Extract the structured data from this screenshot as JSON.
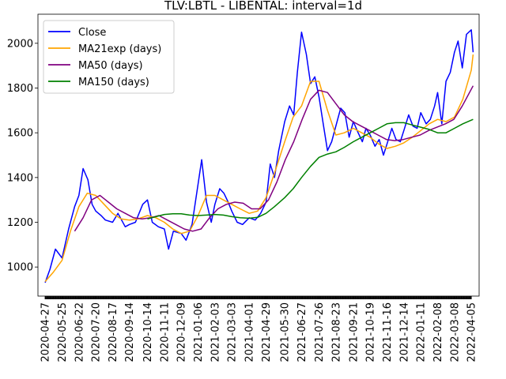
{
  "chart_data": {
    "type": "line",
    "title": "TLV:LBTL - LIBENTAL: interval=1d",
    "xlabel": "",
    "ylabel": "",
    "ylim": [
      870,
      2130
    ],
    "xlim": [
      "2020-04-15",
      "2022-04-18"
    ],
    "grid": false,
    "legend_position": "top-left",
    "yticks": [
      1000,
      1200,
      1400,
      1600,
      1800,
      2000
    ],
    "xticks": [
      "2020-04-27",
      "2020-05-25",
      "2020-06-22",
      "2020-07-20",
      "2020-08-17",
      "2020-09-14",
      "2020-10-14",
      "2020-11-11",
      "2020-12-09",
      "2021-01-06",
      "2021-02-03",
      "2021-03-03",
      "2021-04-01",
      "2021-04-29",
      "2021-05-30",
      "2021-06-27",
      "2021-07-26",
      "2021-08-23",
      "2021-09-21",
      "2021-10-19",
      "2021-11-16",
      "2021-12-14",
      "2022-01-11",
      "2022-02-08",
      "2022-03-08",
      "2022-04-05"
    ],
    "series": [
      {
        "name": "Close",
        "color": "#0000ff",
        "x": [
          "2020-04-27",
          "2020-05-05",
          "2020-05-14",
          "2020-05-25",
          "2020-06-05",
          "2020-06-15",
          "2020-06-22",
          "2020-06-29",
          "2020-07-07",
          "2020-07-14",
          "2020-07-20",
          "2020-07-29",
          "2020-08-05",
          "2020-08-17",
          "2020-08-26",
          "2020-09-07",
          "2020-09-14",
          "2020-09-24",
          "2020-10-06",
          "2020-10-14",
          "2020-10-22",
          "2020-11-01",
          "2020-11-11",
          "2020-11-18",
          "2020-11-26",
          "2020-12-09",
          "2020-12-17",
          "2020-12-27",
          "2021-01-06",
          "2021-01-12",
          "2021-01-20",
          "2021-01-28",
          "2021-02-03",
          "2021-02-11",
          "2021-02-18",
          "2021-02-25",
          "2021-03-03",
          "2021-03-12",
          "2021-03-21",
          "2021-04-01",
          "2021-04-11",
          "2021-04-20",
          "2021-04-29",
          "2021-05-06",
          "2021-05-13",
          "2021-05-20",
          "2021-05-30",
          "2021-06-07",
          "2021-06-14",
          "2021-06-20",
          "2021-06-27",
          "2021-07-05",
          "2021-07-12",
          "2021-07-19",
          "2021-07-26",
          "2021-08-02",
          "2021-08-09",
          "2021-08-16",
          "2021-08-23",
          "2021-08-31",
          "2021-09-07",
          "2021-09-14",
          "2021-09-21",
          "2021-09-29",
          "2021-10-06",
          "2021-10-12",
          "2021-10-19",
          "2021-10-27",
          "2021-11-03",
          "2021-11-10",
          "2021-11-16",
          "2021-11-24",
          "2021-12-01",
          "2021-12-08",
          "2021-12-14",
          "2021-12-22",
          "2021-12-29",
          "2022-01-05",
          "2022-01-11",
          "2022-01-20",
          "2022-01-27",
          "2022-02-03",
          "2022-02-08",
          "2022-02-15",
          "2022-02-22",
          "2022-03-01",
          "2022-03-08",
          "2022-03-14",
          "2022-03-21",
          "2022-03-28",
          "2022-04-05",
          "2022-04-08"
        ],
        "y": [
          930,
          990,
          1080,
          1040,
          1170,
          1270,
          1320,
          1440,
          1390,
          1280,
          1250,
          1230,
          1210,
          1200,
          1240,
          1180,
          1190,
          1200,
          1280,
          1300,
          1200,
          1180,
          1170,
          1080,
          1160,
          1150,
          1120,
          1190,
          1370,
          1480,
          1290,
          1200,
          1280,
          1350,
          1330,
          1290,
          1250,
          1200,
          1190,
          1220,
          1210,
          1240,
          1290,
          1460,
          1400,
          1520,
          1650,
          1720,
          1680,
          1870,
          2050,
          1950,
          1820,
          1850,
          1760,
          1640,
          1520,
          1560,
          1630,
          1710,
          1690,
          1580,
          1650,
          1600,
          1560,
          1620,
          1590,
          1540,
          1570,
          1500,
          1550,
          1620,
          1570,
          1560,
          1610,
          1680,
          1630,
          1620,
          1690,
          1640,
          1660,
          1720,
          1780,
          1640,
          1830,
          1870,
          1960,
          2010,
          1890,
          2040,
          2060,
          1960
        ]
      },
      {
        "name": "MA21exp (days)",
        "color": "#ffa500",
        "x": [
          "2020-04-27",
          "2020-05-10",
          "2020-05-25",
          "2020-06-08",
          "2020-06-22",
          "2020-07-06",
          "2020-07-20",
          "2020-08-03",
          "2020-08-17",
          "2020-08-31",
          "2020-09-14",
          "2020-09-28",
          "2020-10-14",
          "2020-10-28",
          "2020-11-11",
          "2020-11-25",
          "2020-12-09",
          "2020-12-23",
          "2021-01-06",
          "2021-01-20",
          "2021-02-03",
          "2021-02-17",
          "2021-03-03",
          "2021-03-17",
          "2021-04-01",
          "2021-04-15",
          "2021-04-29",
          "2021-05-13",
          "2021-05-30",
          "2021-06-13",
          "2021-06-27",
          "2021-07-12",
          "2021-07-26",
          "2021-08-09",
          "2021-08-23",
          "2021-09-06",
          "2021-09-21",
          "2021-10-05",
          "2021-10-19",
          "2021-11-02",
          "2021-11-16",
          "2021-11-30",
          "2021-12-14",
          "2021-12-28",
          "2022-01-11",
          "2022-01-25",
          "2022-02-08",
          "2022-02-22",
          "2022-03-08",
          "2022-03-22",
          "2022-04-05",
          "2022-04-08"
        ],
        "y": [
          935,
          975,
          1030,
          1160,
          1270,
          1330,
          1320,
          1280,
          1240,
          1215,
          1210,
          1215,
          1230,
          1220,
          1200,
          1170,
          1150,
          1160,
          1230,
          1320,
          1320,
          1300,
          1280,
          1260,
          1240,
          1250,
          1310,
          1420,
          1560,
          1670,
          1720,
          1830,
          1830,
          1700,
          1590,
          1600,
          1620,
          1600,
          1580,
          1550,
          1530,
          1540,
          1555,
          1580,
          1610,
          1640,
          1660,
          1650,
          1670,
          1750,
          1880,
          1950
        ]
      },
      {
        "name": "MA50 (days)",
        "color": "#800080",
        "x": [
          "2020-06-15",
          "2020-06-29",
          "2020-07-13",
          "2020-07-27",
          "2020-08-10",
          "2020-08-24",
          "2020-09-07",
          "2020-09-21",
          "2020-10-05",
          "2020-10-19",
          "2020-11-02",
          "2020-11-16",
          "2020-11-30",
          "2020-12-14",
          "2020-12-28",
          "2021-01-11",
          "2021-01-25",
          "2021-02-08",
          "2021-02-22",
          "2021-03-08",
          "2021-03-22",
          "2021-04-05",
          "2021-04-19",
          "2021-05-03",
          "2021-05-17",
          "2021-05-31",
          "2021-06-14",
          "2021-06-28",
          "2021-07-12",
          "2021-07-26",
          "2021-08-09",
          "2021-08-23",
          "2021-09-06",
          "2021-09-20",
          "2021-10-04",
          "2021-10-18",
          "2021-11-01",
          "2021-11-15",
          "2021-11-29",
          "2021-12-13",
          "2021-12-27",
          "2022-01-10",
          "2022-01-24",
          "2022-02-07",
          "2022-02-21",
          "2022-03-07",
          "2022-03-21",
          "2022-04-08"
        ],
        "y": [
          1160,
          1220,
          1300,
          1320,
          1290,
          1260,
          1240,
          1220,
          1215,
          1220,
          1230,
          1210,
          1190,
          1170,
          1160,
          1170,
          1220,
          1260,
          1280,
          1290,
          1285,
          1260,
          1260,
          1300,
          1380,
          1480,
          1560,
          1660,
          1750,
          1790,
          1780,
          1730,
          1680,
          1650,
          1630,
          1610,
          1590,
          1570,
          1565,
          1570,
          1580,
          1590,
          1610,
          1625,
          1640,
          1660,
          1720,
          1810
        ]
      },
      {
        "name": "MA150 (days)",
        "color": "#008000",
        "x": [
          "2020-10-14",
          "2020-10-28",
          "2020-11-11",
          "2020-11-25",
          "2020-12-09",
          "2020-12-23",
          "2021-01-06",
          "2021-01-20",
          "2021-02-03",
          "2021-02-17",
          "2021-03-03",
          "2021-03-17",
          "2021-04-01",
          "2021-04-15",
          "2021-04-29",
          "2021-05-13",
          "2021-05-30",
          "2021-06-13",
          "2021-06-27",
          "2021-07-12",
          "2021-07-26",
          "2021-08-09",
          "2021-08-23",
          "2021-09-06",
          "2021-09-21",
          "2021-10-05",
          "2021-10-19",
          "2021-11-02",
          "2021-11-16",
          "2021-11-30",
          "2021-12-14",
          "2021-12-28",
          "2022-01-11",
          "2022-01-25",
          "2022-02-08",
          "2022-02-22",
          "2022-03-08",
          "2022-03-22",
          "2022-04-08"
        ],
        "y": [
          1215,
          1225,
          1235,
          1238,
          1238,
          1232,
          1230,
          1232,
          1235,
          1232,
          1225,
          1220,
          1218,
          1222,
          1240,
          1270,
          1310,
          1350,
          1400,
          1450,
          1490,
          1505,
          1515,
          1535,
          1560,
          1580,
          1600,
          1620,
          1640,
          1645,
          1645,
          1635,
          1625,
          1615,
          1600,
          1600,
          1620,
          1640,
          1660
        ]
      }
    ]
  }
}
